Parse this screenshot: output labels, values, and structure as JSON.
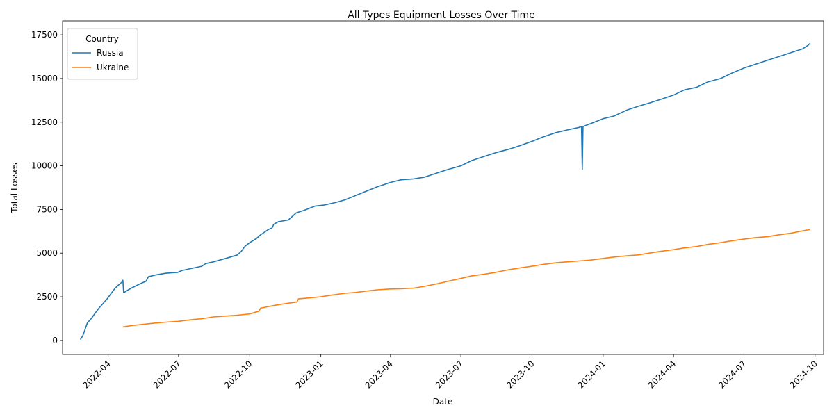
{
  "chart_data": {
    "type": "line",
    "title": "All Types Equipment Losses Over Time",
    "xlabel": "Date",
    "ylabel": "Total Losses",
    "x_axis": "date",
    "xlim": [
      "2022-02-01",
      "2024-10-12"
    ],
    "ylim": [
      -800,
      18300
    ],
    "x_ticks": [
      "2022-04",
      "2022-07",
      "2022-10",
      "2023-01",
      "2023-04",
      "2023-07",
      "2023-10",
      "2024-01",
      "2024-04",
      "2024-07",
      "2024-10"
    ],
    "y_ticks": [
      0,
      2500,
      5000,
      7500,
      10000,
      12500,
      15000,
      17500
    ],
    "grid": false,
    "legend": {
      "title": "Country",
      "placement": "top-left"
    },
    "colors": {
      "Russia": "#1f77b4",
      "Ukraine": "#ff7f0e"
    },
    "series": [
      {
        "name": "Russia",
        "color": "#1f77b4",
        "points": [
          [
            "2022-02-24",
            50
          ],
          [
            "2022-02-27",
            250
          ],
          [
            "2022-03-01",
            500
          ],
          [
            "2022-03-05",
            1000
          ],
          [
            "2022-03-10",
            1250
          ],
          [
            "2022-03-15",
            1550
          ],
          [
            "2022-03-20",
            1850
          ],
          [
            "2022-03-25",
            2100
          ],
          [
            "2022-03-31",
            2400
          ],
          [
            "2022-04-05",
            2700
          ],
          [
            "2022-04-10",
            3000
          ],
          [
            "2022-04-15",
            3200
          ],
          [
            "2022-04-19",
            3350
          ],
          [
            "2022-04-20",
            3450
          ],
          [
            "2022-04-21",
            2730
          ],
          [
            "2022-04-25",
            2850
          ],
          [
            "2022-05-01",
            3000
          ],
          [
            "2022-05-10",
            3200
          ],
          [
            "2022-05-15",
            3300
          ],
          [
            "2022-05-20",
            3400
          ],
          [
            "2022-05-23",
            3650
          ],
          [
            "2022-06-01",
            3750
          ],
          [
            "2022-06-15",
            3850
          ],
          [
            "2022-06-30",
            3900
          ],
          [
            "2022-07-05",
            4000
          ],
          [
            "2022-07-15",
            4100
          ],
          [
            "2022-07-31",
            4250
          ],
          [
            "2022-08-05",
            4400
          ],
          [
            "2022-08-15",
            4500
          ],
          [
            "2022-08-31",
            4700
          ],
          [
            "2022-09-15",
            4900
          ],
          [
            "2022-09-20",
            5100
          ],
          [
            "2022-09-25",
            5400
          ],
          [
            "2022-10-01",
            5600
          ],
          [
            "2022-10-10",
            5850
          ],
          [
            "2022-10-15",
            6050
          ],
          [
            "2022-10-25",
            6350
          ],
          [
            "2022-10-30",
            6450
          ],
          [
            "2022-11-01",
            6650
          ],
          [
            "2022-11-07",
            6800
          ],
          [
            "2022-11-20",
            6900
          ],
          [
            "2022-11-30",
            7300
          ],
          [
            "2022-12-10",
            7450
          ],
          [
            "2022-12-25",
            7700
          ],
          [
            "2023-01-05",
            7750
          ],
          [
            "2023-01-20",
            7900
          ],
          [
            "2023-02-01",
            8050
          ],
          [
            "2023-02-15",
            8300
          ],
          [
            "2023-03-01",
            8550
          ],
          [
            "2023-03-15",
            8800
          ],
          [
            "2023-04-01",
            9050
          ],
          [
            "2023-04-15",
            9200
          ],
          [
            "2023-05-01",
            9250
          ],
          [
            "2023-05-15",
            9350
          ],
          [
            "2023-06-01",
            9600
          ],
          [
            "2023-06-15",
            9800
          ],
          [
            "2023-07-01",
            10000
          ],
          [
            "2023-07-15",
            10300
          ],
          [
            "2023-08-01",
            10550
          ],
          [
            "2023-08-15",
            10750
          ],
          [
            "2023-09-01",
            10950
          ],
          [
            "2023-09-15",
            11150
          ],
          [
            "2023-10-01",
            11400
          ],
          [
            "2023-10-15",
            11650
          ],
          [
            "2023-11-01",
            11900
          ],
          [
            "2023-11-15",
            12050
          ],
          [
            "2023-12-01",
            12200
          ],
          [
            "2023-12-04",
            12250
          ],
          [
            "2023-12-05",
            9800
          ],
          [
            "2023-12-06",
            12250
          ],
          [
            "2023-12-15",
            12400
          ],
          [
            "2024-01-01",
            12700
          ],
          [
            "2024-01-15",
            12850
          ],
          [
            "2024-02-01",
            13200
          ],
          [
            "2024-02-15",
            13400
          ],
          [
            "2024-03-01",
            13600
          ],
          [
            "2024-03-15",
            13800
          ],
          [
            "2024-04-01",
            14050
          ],
          [
            "2024-04-15",
            14350
          ],
          [
            "2024-05-01",
            14500
          ],
          [
            "2024-05-15",
            14800
          ],
          [
            "2024-06-01",
            15000
          ],
          [
            "2024-06-15",
            15300
          ],
          [
            "2024-07-01",
            15600
          ],
          [
            "2024-07-15",
            15800
          ],
          [
            "2024-08-01",
            16050
          ],
          [
            "2024-08-15",
            16250
          ],
          [
            "2024-09-01",
            16500
          ],
          [
            "2024-09-15",
            16700
          ],
          [
            "2024-09-22",
            16900
          ],
          [
            "2024-09-24",
            17000
          ]
        ]
      },
      {
        "name": "Ukraine",
        "color": "#ff7f0e",
        "points": [
          [
            "2022-04-20",
            780
          ],
          [
            "2022-05-01",
            850
          ],
          [
            "2022-05-15",
            920
          ],
          [
            "2022-06-01",
            1000
          ],
          [
            "2022-06-15",
            1050
          ],
          [
            "2022-07-01",
            1100
          ],
          [
            "2022-07-20",
            1200
          ],
          [
            "2022-08-01",
            1250
          ],
          [
            "2022-08-15",
            1350
          ],
          [
            "2022-09-01",
            1400
          ],
          [
            "2022-09-15",
            1450
          ],
          [
            "2022-10-01",
            1520
          ],
          [
            "2022-10-13",
            1680
          ],
          [
            "2022-10-15",
            1850
          ],
          [
            "2022-11-01",
            2000
          ],
          [
            "2022-11-15",
            2100
          ],
          [
            "2022-12-01",
            2200
          ],
          [
            "2022-12-03",
            2380
          ],
          [
            "2022-12-15",
            2430
          ],
          [
            "2023-01-01",
            2500
          ],
          [
            "2023-01-15",
            2600
          ],
          [
            "2023-02-01",
            2700
          ],
          [
            "2023-02-15",
            2750
          ],
          [
            "2023-03-01",
            2830
          ],
          [
            "2023-03-15",
            2900
          ],
          [
            "2023-04-01",
            2950
          ],
          [
            "2023-04-15",
            2960
          ],
          [
            "2023-05-01",
            3000
          ],
          [
            "2023-05-15",
            3100
          ],
          [
            "2023-06-01",
            3250
          ],
          [
            "2023-06-15",
            3400
          ],
          [
            "2023-07-01",
            3550
          ],
          [
            "2023-07-15",
            3700
          ],
          [
            "2023-08-01",
            3800
          ],
          [
            "2023-08-15",
            3900
          ],
          [
            "2023-09-01",
            4050
          ],
          [
            "2023-09-15",
            4150
          ],
          [
            "2023-10-01",
            4250
          ],
          [
            "2023-10-15",
            4350
          ],
          [
            "2023-11-01",
            4450
          ],
          [
            "2023-11-15",
            4500
          ],
          [
            "2023-12-01",
            4550
          ],
          [
            "2023-12-15",
            4600
          ],
          [
            "2024-01-01",
            4700
          ],
          [
            "2024-01-15",
            4780
          ],
          [
            "2024-02-01",
            4850
          ],
          [
            "2024-02-15",
            4900
          ],
          [
            "2024-03-01",
            5000
          ],
          [
            "2024-03-15",
            5100
          ],
          [
            "2024-04-01",
            5200
          ],
          [
            "2024-04-15",
            5300
          ],
          [
            "2024-05-01",
            5380
          ],
          [
            "2024-05-15",
            5500
          ],
          [
            "2024-06-01",
            5600
          ],
          [
            "2024-06-15",
            5700
          ],
          [
            "2024-07-01",
            5800
          ],
          [
            "2024-07-15",
            5880
          ],
          [
            "2024-08-01",
            5950
          ],
          [
            "2024-08-15",
            6050
          ],
          [
            "2024-09-01",
            6150
          ],
          [
            "2024-09-15",
            6280
          ],
          [
            "2024-09-24",
            6350
          ]
        ]
      }
    ]
  }
}
